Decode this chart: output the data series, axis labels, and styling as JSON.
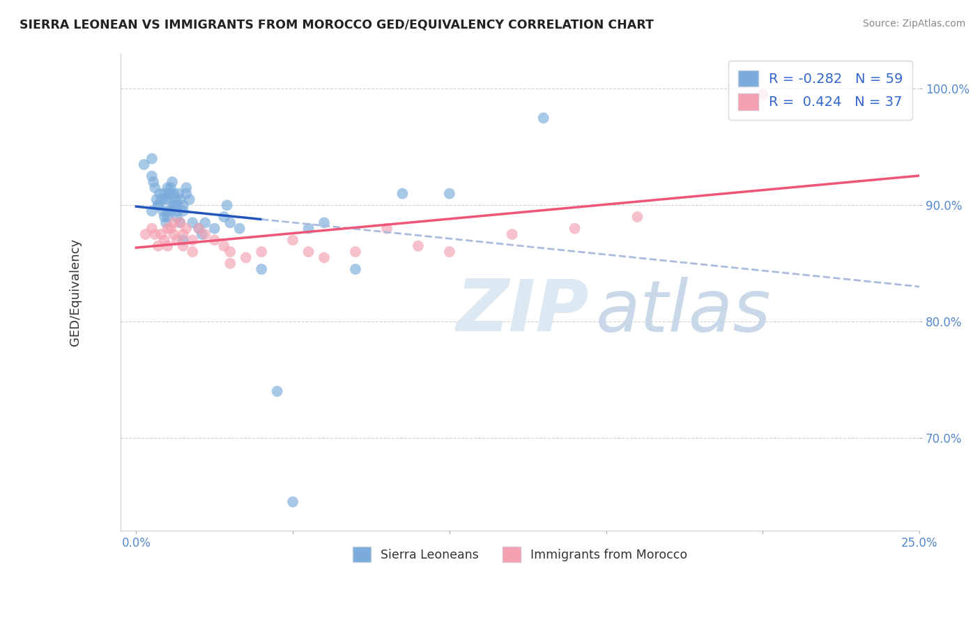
{
  "title": "SIERRA LEONEAN VS IMMIGRANTS FROM MOROCCO GED/EQUIVALENCY CORRELATION CHART",
  "source_text": "Source: ZipAtlas.com",
  "ylabel": "GED/Equivalency",
  "xlim_left": -0.5,
  "xlim_right": 25.0,
  "ylim_bottom": 62.0,
  "ylim_top": 103.0,
  "x_tick_vals": [
    0,
    5,
    10,
    15,
    20,
    25
  ],
  "x_tick_labels": [
    "0.0%",
    "",
    "",
    "",
    "",
    "25.0%"
  ],
  "y_tick_vals": [
    70,
    80,
    90,
    100
  ],
  "y_tick_labels": [
    "70.0%",
    "80.0%",
    "90.0%",
    "100.0%"
  ],
  "blue_R": -0.282,
  "blue_N": 59,
  "pink_R": 0.424,
  "pink_N": 37,
  "blue_color": "#7AABDB",
  "pink_color": "#F4A0B0",
  "blue_line_color": "#2255BB",
  "pink_line_color": "#EE5577",
  "blue_dashed_color": "#aabbdd",
  "legend_label_blue": "Sierra Leoneans",
  "legend_label_pink": "Immigrants from Morocco",
  "watermark": "ZIPatlas",
  "tick_color": "#5588CC",
  "blue_scatter_x": [
    0.25,
    0.5,
    0.5,
    0.55,
    0.6,
    0.65,
    0.7,
    0.75,
    0.8,
    0.85,
    0.9,
    0.9,
    0.95,
    1.0,
    1.0,
    1.0,
    1.05,
    1.1,
    1.1,
    1.15,
    1.2,
    1.2,
    1.25,
    1.3,
    1.3,
    1.35,
    1.4,
    1.5,
    1.5,
    1.6,
    1.7,
    1.8,
    2.0,
    2.1,
    2.2,
    2.5,
    2.8,
    3.0,
    3.3,
    4.0,
    4.5,
    5.0,
    5.5,
    6.0,
    7.0,
    8.5,
    13.0,
    0.5,
    0.7,
    0.9,
    1.0,
    1.1,
    1.2,
    1.3,
    1.4,
    1.5,
    1.6,
    2.9,
    10.0
  ],
  "blue_scatter_y": [
    93.5,
    94.0,
    89.5,
    92.0,
    91.5,
    90.5,
    90.0,
    91.0,
    90.5,
    89.5,
    91.0,
    89.0,
    88.5,
    91.5,
    90.5,
    89.0,
    91.0,
    91.5,
    89.5,
    92.0,
    91.0,
    90.0,
    90.5,
    90.0,
    89.0,
    91.0,
    90.5,
    90.0,
    89.5,
    91.5,
    90.5,
    88.5,
    88.0,
    87.5,
    88.5,
    88.0,
    89.0,
    88.5,
    88.0,
    84.5,
    74.0,
    64.5,
    88.0,
    88.5,
    84.5,
    91.0,
    97.5,
    92.5,
    90.0,
    90.5,
    89.5,
    91.0,
    90.0,
    89.5,
    88.5,
    87.0,
    91.0,
    90.0,
    91.0
  ],
  "pink_scatter_x": [
    0.3,
    0.5,
    0.6,
    0.7,
    0.8,
    0.9,
    1.0,
    1.1,
    1.2,
    1.3,
    1.4,
    1.5,
    1.6,
    1.8,
    2.0,
    2.2,
    2.5,
    2.8,
    3.0,
    3.5,
    4.0,
    5.0,
    5.5,
    6.0,
    7.0,
    8.0,
    9.0,
    10.0,
    12.0,
    14.0,
    16.0,
    20.0,
    1.0,
    1.2,
    1.5,
    1.8,
    3.0
  ],
  "pink_scatter_y": [
    87.5,
    88.0,
    87.5,
    86.5,
    87.5,
    87.0,
    86.5,
    88.0,
    87.5,
    87.0,
    88.5,
    87.5,
    88.0,
    87.0,
    88.0,
    87.5,
    87.0,
    86.5,
    86.0,
    85.5,
    86.0,
    87.0,
    86.0,
    85.5,
    86.0,
    88.0,
    86.5,
    86.0,
    87.5,
    88.0,
    89.0,
    99.5,
    88.0,
    88.5,
    86.5,
    86.0,
    85.0
  ]
}
